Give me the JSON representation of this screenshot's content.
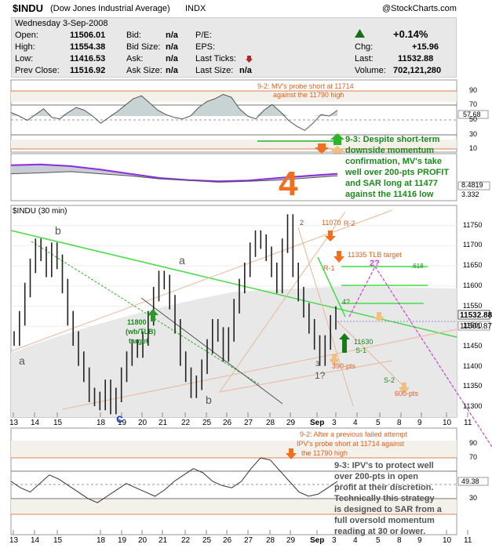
{
  "header": {
    "symbol": "$INDU",
    "name": "(Dow Jones Industrial Average)",
    "exchange": "INDX",
    "copyright": "@StockCharts.com"
  },
  "quote": {
    "date": "Wednesday  3-Sep-2008",
    "open_label": "Open:",
    "open": "11506.01",
    "high_label": "High:",
    "high": "11554.38",
    "low_label": "Low:",
    "low": "11416.53",
    "prev_label": "Prev Close:",
    "prev": "11516.92",
    "bid_label": "Bid:",
    "bid": "n/a",
    "bidsize_label": "Bid Size:",
    "bidsize": "n/a",
    "ask_label": "Ask:",
    "ask": "n/a",
    "asksize_label": "Ask Size:",
    "asksize": "n/a",
    "pe_label": "P/E:",
    "eps_label": "EPS:",
    "lastticks_label": "Last Ticks:",
    "lastsize_label": "Last Size:",
    "lastsize": "n/a",
    "pct": "+0.14%",
    "chg_label": "Chg:",
    "chg": "+15.96",
    "last_label": "Last:",
    "last": "11532.88",
    "volume_label": "Volume:",
    "volume": "702,121,280",
    "up_color": "#1a6b1a"
  },
  "chart_data": [
    {
      "type": "line",
      "panel": "upper momentum",
      "ylim": [
        0,
        100
      ],
      "y_ticks": [
        "90",
        "70",
        "50",
        "30",
        "10"
      ],
      "value_label": "57.68",
      "x": [
        0,
        2,
        4,
        6,
        8,
        10,
        12,
        14,
        16,
        18,
        20,
        22,
        24,
        26,
        28,
        30,
        32,
        34,
        36,
        38,
        40,
        42,
        44,
        46,
        48,
        50,
        52,
        54,
        56,
        58,
        60,
        62,
        64,
        66,
        68,
        70,
        72,
        74,
        76,
        78,
        80
      ],
      "values": [
        55,
        50,
        44,
        52,
        60,
        48,
        46,
        55,
        62,
        58,
        50,
        40,
        48,
        56,
        65,
        74,
        78,
        68,
        58,
        52,
        48,
        46,
        50,
        62,
        70,
        74,
        80,
        76,
        60,
        50,
        46,
        58,
        66,
        56,
        44,
        36,
        30,
        40,
        52,
        50,
        58
      ],
      "annotations": [
        {
          "text": "9-2: MV's probe short at 11714",
          "color": "#e06020"
        },
        {
          "text": "against the 11790 high",
          "color": "#e06020"
        },
        {
          "text": "9-3: Despite short-term",
          "color": "#1a8a1a"
        },
        {
          "text": "downside momentum",
          "color": "#1a8a1a"
        },
        {
          "text": "confirmation, MV's take",
          "color": "#1a8a1a"
        },
        {
          "text": "well over 200-pts PROFIT",
          "color": "#1a8a1a"
        },
        {
          "text": "and SAR long at 11477",
          "color": "#1a8a1a"
        },
        {
          "text": "against  the 11416 low",
          "color": "#1a8a1a"
        }
      ]
    },
    {
      "type": "line",
      "panel": "moving average strip",
      "value_labels": [
        "8.4819",
        "3.332"
      ],
      "big_label": "4",
      "series": [
        {
          "values": [
            0.8,
            0.82,
            0.78,
            0.7,
            0.6,
            0.5,
            0.45,
            0.42,
            0.44,
            0.5,
            0.55,
            0.6
          ],
          "color": "#8a2be2"
        },
        {
          "values": [
            0.6,
            0.62,
            0.65,
            0.6,
            0.55,
            0.48,
            0.44,
            0.4,
            0.42,
            0.45,
            0.5,
            0.55
          ],
          "color": "#555555"
        }
      ]
    },
    {
      "type": "bar",
      "subtype": "ohlc",
      "title": "$INDU (30 min)",
      "ylim": [
        11275,
        11800
      ],
      "y_ticks": [
        "11750",
        "11700",
        "11650",
        "11600",
        "11550",
        "11500",
        "11450",
        "11400",
        "11350",
        "11300"
      ],
      "x_ticks": [
        "13",
        "14",
        "15",
        "18",
        "19",
        "20",
        "21",
        "22",
        "25",
        "26",
        "27",
        "28",
        "29",
        "Sep",
        "3",
        "4",
        "5",
        "8",
        "9",
        "10",
        "11"
      ],
      "last_price_label": "11532.88",
      "prev_price_label": "11501.87",
      "close": [
        11470,
        11520,
        11590,
        11650,
        11700,
        11680,
        11640,
        11690,
        11660,
        11600,
        11520,
        11470,
        11420,
        11380,
        11330,
        11320,
        11310,
        11350,
        11300,
        11330,
        11380,
        11420,
        11450,
        11440,
        11470,
        11520,
        11580,
        11620,
        11610,
        11560,
        11500,
        11420,
        11380,
        11340,
        11360,
        11400,
        11450,
        11500,
        11480,
        11430,
        11480,
        11550,
        11600,
        11640,
        11690,
        11720,
        11710,
        11680,
        11640,
        11600,
        11700,
        11760,
        11640,
        11580,
        11540,
        11500,
        11460,
        11420,
        11460,
        11510,
        11532
      ],
      "annotations": [
        {
          "text": "a",
          "color": "#555555"
        },
        {
          "text": "b",
          "color": "#555555"
        },
        {
          "text": "a",
          "color": "#555555"
        },
        {
          "text": "b",
          "color": "#555555"
        },
        {
          "text": "c",
          "color": "#1a4ad6"
        },
        {
          "text": "11800",
          "color": "#1a8a1a"
        },
        {
          "text": "(wb/TLB)",
          "color": "#1a8a1a"
        },
        {
          "text": "target",
          "color": "#1a8a1a"
        },
        {
          "text": "11070",
          "color": "#e06020"
        },
        {
          "text": "R-2",
          "color": "#e06020"
        },
        {
          "text": "11335 TLB target",
          "color": "#e06020"
        },
        {
          "text": "R-1",
          "color": "#e06020"
        },
        {
          "text": "2?",
          "color": "#cc44cc"
        },
        {
          "text": ".618",
          "color": "#1a8a1a"
        },
        {
          "text": "4?",
          "color": "#1a8a1a"
        },
        {
          "text": "11630",
          "color": "#1a8a1a"
        },
        {
          "text": "S-1",
          "color": "#1a8a1a"
        },
        {
          "text": "390-pts",
          "color": "#e06020"
        },
        {
          "text": "1?",
          "color": "#555555"
        },
        {
          "text": "S-2",
          "color": "#1a8a1a"
        },
        {
          "text": "600-pts",
          "color": "#e06020"
        },
        {
          "text": "2",
          "color": "#555555"
        },
        {
          "text": "3",
          "color": "#555555"
        }
      ]
    },
    {
      "type": "line",
      "panel": "lower momentum",
      "ylim": [
        0,
        100
      ],
      "y_ticks": [
        "90",
        "70",
        "50",
        "30"
      ],
      "value_label": "49.38",
      "values": [
        50,
        44,
        40,
        48,
        56,
        52,
        46,
        40,
        34,
        30,
        36,
        42,
        48,
        44,
        40,
        36,
        42,
        50,
        56,
        62,
        58,
        50,
        46,
        44,
        50,
        62,
        72,
        70,
        60,
        50,
        40,
        36,
        38,
        44,
        50
      ],
      "annotations": [
        {
          "text": "9-2: After a previous failed attempt",
          "color": "#e06020"
        },
        {
          "text": "IPV's probe short at 11714 against",
          "color": "#e06020"
        },
        {
          "text": "the 11790 high",
          "color": "#e06020"
        },
        {
          "text": "9-3: IPV's to protect well",
          "color": "#555555"
        },
        {
          "text": "over 200-pts in open",
          "color": "#555555"
        },
        {
          "text": "profit at their discretion.",
          "color": "#555555"
        },
        {
          "text": "Technically this strategy",
          "color": "#555555"
        },
        {
          "text": "is designed to SAR from a",
          "color": "#555555"
        },
        {
          "text": "full oversold momentum",
          "color": "#555555"
        },
        {
          "text": "reading at 30 or lower.",
          "color": "#555555"
        }
      ]
    }
  ]
}
